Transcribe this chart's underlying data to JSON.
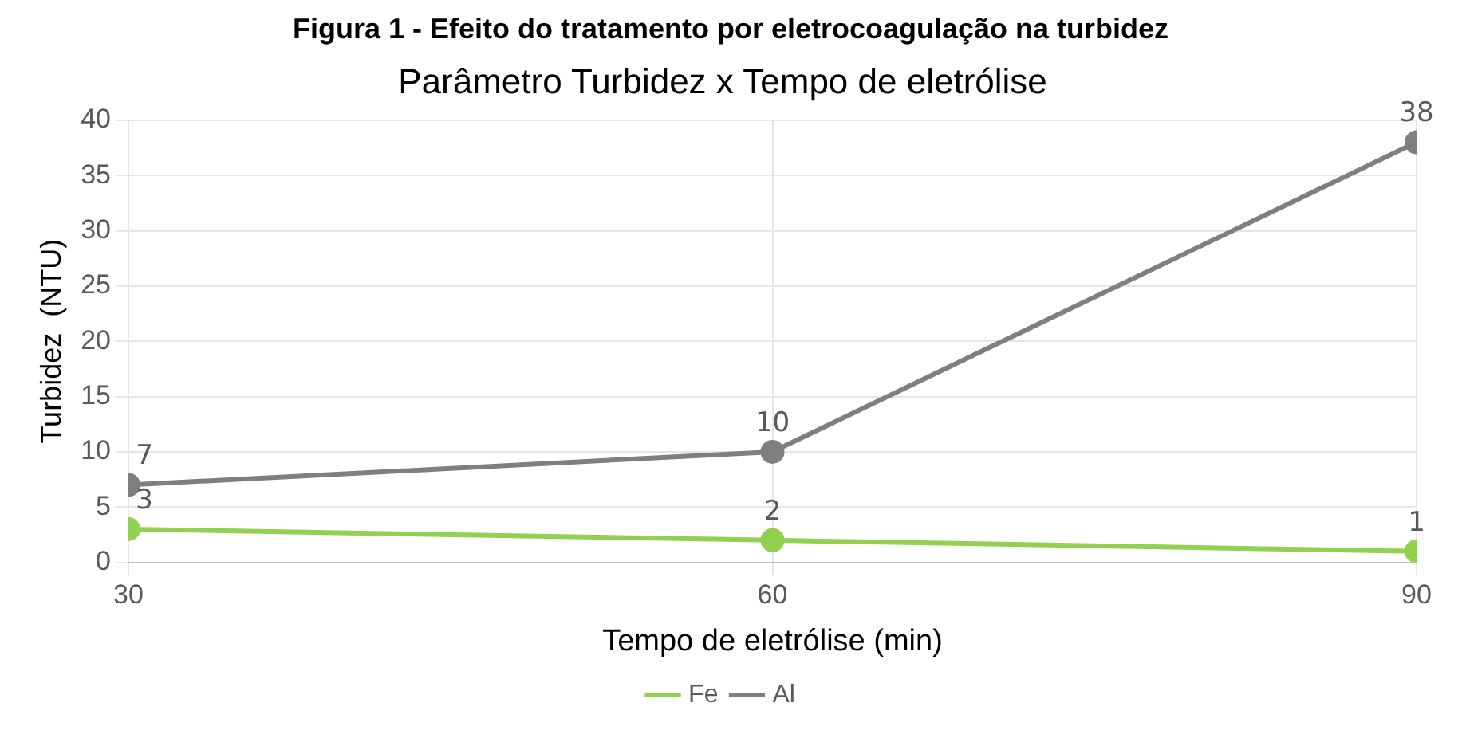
{
  "chart_data": {
    "type": "line",
    "title": "Parâmetro Turbidez x Tempo de eletrólise",
    "annotations": [
      "Figura 1 - Efeito do tratamento por eletrocoagulação na turbidez"
    ],
    "xlabel": "Tempo de eletrólise (min)",
    "ylabel": "Turbidez  (NTU)",
    "x": [
      30,
      60,
      90
    ],
    "series": [
      {
        "name": "Fe",
        "color": "#92d050",
        "values": [
          3,
          2,
          1
        ]
      },
      {
        "name": "Al",
        "color": "#7f7f7f",
        "values": [
          7,
          10,
          38
        ]
      }
    ],
    "xlim": [
      30,
      90
    ],
    "xticks": [
      30,
      60,
      90
    ],
    "ylim": [
      0,
      40
    ],
    "yticks": [
      0,
      5,
      10,
      15,
      20,
      25,
      30,
      35,
      40
    ],
    "grid": true,
    "legend": "bottom",
    "marker": "circle",
    "line_style": "solid",
    "data_labels": true
  }
}
